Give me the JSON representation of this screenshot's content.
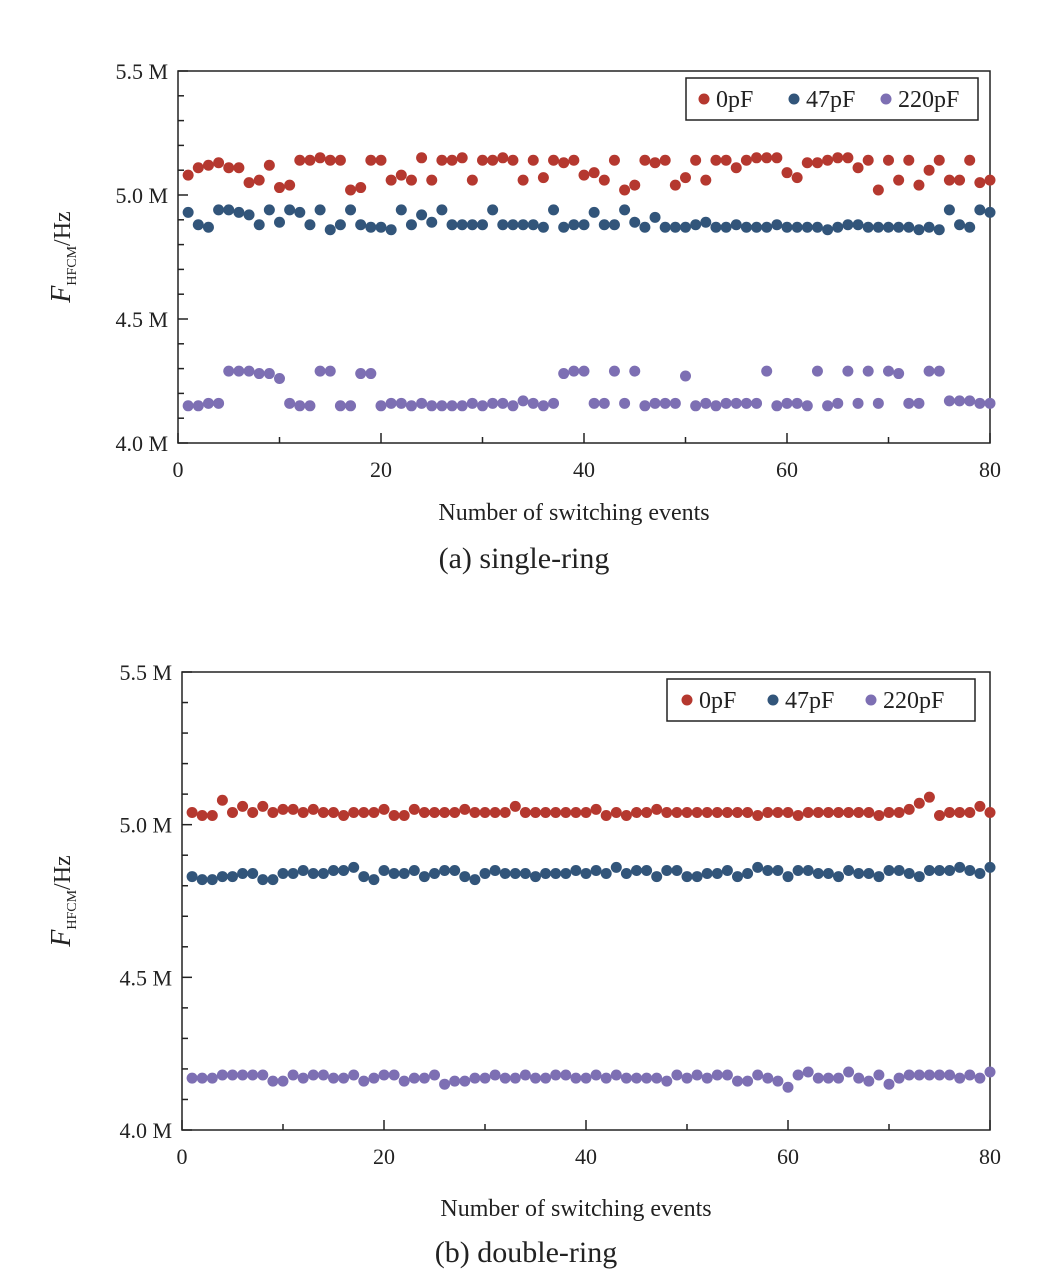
{
  "chart_data": [
    {
      "type": "scatter",
      "caption": "(a) single-ring",
      "xlabel": "Number of switching events",
      "ylabel": {
        "main": "F",
        "sub": "HFCM",
        "unit": "/Hz"
      },
      "xlim": [
        0,
        80
      ],
      "ylim": [
        4.0,
        5.5
      ],
      "xticks": [
        "0",
        "20",
        "40",
        "60",
        "80"
      ],
      "yticks": [
        "4.0 M",
        "4.5 M",
        "5.0 M",
        "5.5 M"
      ],
      "legend_position": "top-right",
      "x": [
        1,
        2,
        3,
        4,
        5,
        6,
        7,
        8,
        9,
        10,
        11,
        12,
        13,
        14,
        15,
        16,
        17,
        18,
        19,
        20,
        21,
        22,
        23,
        24,
        25,
        26,
        27,
        28,
        29,
        30,
        31,
        32,
        33,
        34,
        35,
        36,
        37,
        38,
        39,
        40,
        41,
        42,
        43,
        44,
        45,
        46,
        47,
        48,
        49,
        50,
        51,
        52,
        53,
        54,
        55,
        56,
        57,
        58,
        59,
        60,
        61,
        62,
        63,
        64,
        65,
        66,
        67,
        68,
        69,
        70,
        71,
        72,
        73,
        74,
        75,
        76,
        77,
        78,
        79,
        80
      ],
      "series": [
        {
          "name": "0pF",
          "color": "#b5382f",
          "values": [
            5.08,
            5.11,
            5.12,
            5.13,
            5.11,
            5.11,
            5.05,
            5.06,
            5.12,
            5.03,
            5.04,
            5.14,
            5.14,
            5.15,
            5.14,
            5.14,
            5.02,
            5.03,
            5.14,
            5.14,
            5.06,
            5.08,
            5.06,
            5.15,
            5.06,
            5.14,
            5.14,
            5.15,
            5.06,
            5.14,
            5.14,
            5.15,
            5.14,
            5.06,
            5.14,
            5.07,
            5.14,
            5.13,
            5.14,
            5.08,
            5.09,
            5.06,
            5.14,
            5.02,
            5.04,
            5.14,
            5.13,
            5.14,
            5.04,
            5.07,
            5.14,
            5.06,
            5.14,
            5.14,
            5.11,
            5.14,
            5.15,
            5.15,
            5.15,
            5.09,
            5.07,
            5.13,
            5.13,
            5.14,
            5.15,
            5.15,
            5.11,
            5.14,
            5.02,
            5.14,
            5.06,
            5.14,
            5.04,
            5.1,
            5.14,
            5.06,
            5.06,
            5.14,
            5.05,
            5.06
          ]
        },
        {
          "name": "47pF",
          "color": "#32557a",
          "values": [
            4.93,
            4.88,
            4.87,
            4.94,
            4.94,
            4.93,
            4.92,
            4.88,
            4.94,
            4.89,
            4.94,
            4.93,
            4.88,
            4.94,
            4.86,
            4.88,
            4.94,
            4.88,
            4.87,
            4.87,
            4.86,
            4.94,
            4.88,
            4.92,
            4.89,
            4.94,
            4.88,
            4.88,
            4.88,
            4.88,
            4.94,
            4.88,
            4.88,
            4.88,
            4.88,
            4.87,
            4.94,
            4.87,
            4.88,
            4.88,
            4.93,
            4.88,
            4.88,
            4.94,
            4.89,
            4.87,
            4.91,
            4.87,
            4.87,
            4.87,
            4.88,
            4.89,
            4.87,
            4.87,
            4.88,
            4.87,
            4.87,
            4.87,
            4.88,
            4.87,
            4.87,
            4.87,
            4.87,
            4.86,
            4.87,
            4.88,
            4.88,
            4.87,
            4.87,
            4.87,
            4.87,
            4.87,
            4.86,
            4.87,
            4.86,
            4.94,
            4.88,
            4.87,
            4.94,
            4.93
          ]
        },
        {
          "name": "220pF",
          "color": "#7d6fb3",
          "values": [
            4.15,
            4.15,
            4.16,
            4.16,
            4.29,
            4.29,
            4.29,
            4.28,
            4.28,
            4.26,
            4.16,
            4.15,
            4.15,
            4.29,
            4.29,
            4.15,
            4.15,
            4.28,
            4.28,
            4.15,
            4.16,
            4.16,
            4.15,
            4.16,
            4.15,
            4.15,
            4.15,
            4.15,
            4.16,
            4.15,
            4.16,
            4.16,
            4.15,
            4.17,
            4.16,
            4.15,
            4.16,
            4.28,
            4.29,
            4.29,
            4.16,
            4.16,
            4.29,
            4.16,
            4.29,
            4.15,
            4.16,
            4.16,
            4.16,
            4.27,
            4.15,
            4.16,
            4.15,
            4.16,
            4.16,
            4.16,
            4.16,
            4.29,
            4.15,
            4.16,
            4.16,
            4.15,
            4.29,
            4.15,
            4.16,
            4.29,
            4.16,
            4.29,
            4.16,
            4.29,
            4.28,
            4.16,
            4.16,
            4.29,
            4.29,
            4.17,
            4.17,
            4.17,
            4.16,
            4.16
          ]
        }
      ]
    },
    {
      "type": "scatter",
      "caption": "(b) double-ring",
      "xlabel": "Number of switching events",
      "ylabel": {
        "main": "F",
        "sub": "HFCM",
        "unit": "/Hz"
      },
      "xlim": [
        0,
        80
      ],
      "ylim": [
        4.0,
        5.5
      ],
      "xticks": [
        "0",
        "20",
        "40",
        "60",
        "80"
      ],
      "yticks": [
        "4.0 M",
        "4.5 M",
        "5.0 M",
        "5.5 M"
      ],
      "legend_position": "top-right",
      "x": [
        1,
        2,
        3,
        4,
        5,
        6,
        7,
        8,
        9,
        10,
        11,
        12,
        13,
        14,
        15,
        16,
        17,
        18,
        19,
        20,
        21,
        22,
        23,
        24,
        25,
        26,
        27,
        28,
        29,
        30,
        31,
        32,
        33,
        34,
        35,
        36,
        37,
        38,
        39,
        40,
        41,
        42,
        43,
        44,
        45,
        46,
        47,
        48,
        49,
        50,
        51,
        52,
        53,
        54,
        55,
        56,
        57,
        58,
        59,
        60,
        61,
        62,
        63,
        64,
        65,
        66,
        67,
        68,
        69,
        70,
        71,
        72,
        73,
        74,
        75,
        76,
        77,
        78,
        79,
        80
      ],
      "series": [
        {
          "name": "0pF",
          "color": "#b5382f",
          "values": [
            5.04,
            5.03,
            5.03,
            5.08,
            5.04,
            5.06,
            5.04,
            5.06,
            5.04,
            5.05,
            5.05,
            5.04,
            5.05,
            5.04,
            5.04,
            5.03,
            5.04,
            5.04,
            5.04,
            5.05,
            5.03,
            5.03,
            5.05,
            5.04,
            5.04,
            5.04,
            5.04,
            5.05,
            5.04,
            5.04,
            5.04,
            5.04,
            5.06,
            5.04,
            5.04,
            5.04,
            5.04,
            5.04,
            5.04,
            5.04,
            5.05,
            5.03,
            5.04,
            5.03,
            5.04,
            5.04,
            5.05,
            5.04,
            5.04,
            5.04,
            5.04,
            5.04,
            5.04,
            5.04,
            5.04,
            5.04,
            5.03,
            5.04,
            5.04,
            5.04,
            5.03,
            5.04,
            5.04,
            5.04,
            5.04,
            5.04,
            5.04,
            5.04,
            5.03,
            5.04,
            5.04,
            5.05,
            5.07,
            5.09,
            5.03,
            5.04,
            5.04,
            5.04,
            5.06,
            5.04
          ]
        },
        {
          "name": "47pF",
          "color": "#32557a",
          "values": [
            4.83,
            4.82,
            4.82,
            4.83,
            4.83,
            4.84,
            4.84,
            4.82,
            4.82,
            4.84,
            4.84,
            4.85,
            4.84,
            4.84,
            4.85,
            4.85,
            4.86,
            4.83,
            4.82,
            4.85,
            4.84,
            4.84,
            4.85,
            4.83,
            4.84,
            4.85,
            4.85,
            4.83,
            4.82,
            4.84,
            4.85,
            4.84,
            4.84,
            4.84,
            4.83,
            4.84,
            4.84,
            4.84,
            4.85,
            4.84,
            4.85,
            4.84,
            4.86,
            4.84,
            4.85,
            4.85,
            4.83,
            4.85,
            4.85,
            4.83,
            4.83,
            4.84,
            4.84,
            4.85,
            4.83,
            4.84,
            4.86,
            4.85,
            4.85,
            4.83,
            4.85,
            4.85,
            4.84,
            4.84,
            4.83,
            4.85,
            4.84,
            4.84,
            4.83,
            4.85,
            4.85,
            4.84,
            4.83,
            4.85,
            4.85,
            4.85,
            4.86,
            4.85,
            4.84,
            4.86
          ]
        },
        {
          "name": "220pF",
          "color": "#7d6fb3",
          "values": [
            4.17,
            4.17,
            4.17,
            4.18,
            4.18,
            4.18,
            4.18,
            4.18,
            4.16,
            4.16,
            4.18,
            4.17,
            4.18,
            4.18,
            4.17,
            4.17,
            4.18,
            4.16,
            4.17,
            4.18,
            4.18,
            4.16,
            4.17,
            4.17,
            4.18,
            4.15,
            4.16,
            4.16,
            4.17,
            4.17,
            4.18,
            4.17,
            4.17,
            4.18,
            4.17,
            4.17,
            4.18,
            4.18,
            4.17,
            4.17,
            4.18,
            4.17,
            4.18,
            4.17,
            4.17,
            4.17,
            4.17,
            4.16,
            4.18,
            4.17,
            4.18,
            4.17,
            4.18,
            4.18,
            4.16,
            4.16,
            4.18,
            4.17,
            4.16,
            4.14,
            4.18,
            4.19,
            4.17,
            4.17,
            4.17,
            4.19,
            4.17,
            4.16,
            4.18,
            4.15,
            4.17,
            4.18,
            4.18,
            4.18,
            4.18,
            4.18,
            4.17,
            4.18,
            4.17,
            4.19
          ]
        }
      ]
    }
  ]
}
